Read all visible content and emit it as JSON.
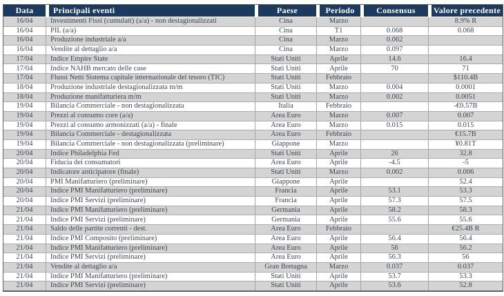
{
  "table": {
    "columns": [
      {
        "label": "Data"
      },
      {
        "label": "Principali eventi"
      },
      {
        "label": "Paese"
      },
      {
        "label": "Periodo"
      },
      {
        "label": "Consensus"
      },
      {
        "label": "Valore precedente"
      }
    ],
    "rows": [
      [
        "16/04",
        "Investimenti Fissi (cumulati) (a/a) - non destagionalizzati",
        "Cina",
        "Marzo",
        "",
        "8.9% R"
      ],
      [
        "16/04",
        "PIL (a/a)",
        "Cina",
        "T1",
        "0.068",
        "0.068"
      ],
      [
        "16/04",
        "Produzione industriale a/a",
        "Cina",
        "Marzo",
        "0.062",
        ""
      ],
      [
        "16/04",
        "Vendite al dettaglio a/a",
        "Cina",
        "Marzo",
        "0.097",
        ""
      ],
      [
        "17/04",
        "Indice Empire State",
        "Stati Uniti",
        "Aprile",
        "14.6",
        "16.4"
      ],
      [
        "17/04",
        "Indice NAHB mercato delle case",
        "Stati Uniti",
        "Aprile",
        "70",
        "71"
      ],
      [
        "17/04",
        "Flussi Netti Sistema capitale internazionale del tesoro (TIC)",
        "Stati Uniti",
        "Febbraio",
        "",
        "$110.4B"
      ],
      [
        "18/04",
        "Produzione industriale destagionalizzata m/m",
        "Stati Uniti",
        "Marzo",
        "0.004",
        "0.0001"
      ],
      [
        "18/04",
        "Produzione manifatturiera m/m",
        "Stati Uniti",
        "Marzo",
        "0.002",
        "0.0051"
      ],
      [
        "19/04",
        "Bilancia Commerciale - non destagionalizzata",
        "Italia",
        "Febbraio",
        "",
        "-€0.57B"
      ],
      [
        "19/04",
        "Prezzi al consumo core  (a/a)",
        "Area Euro",
        "Marzo",
        "0.007",
        "0.007"
      ],
      [
        "19/04",
        "Prezzi al consumo armonizzati (a/a) - finale",
        "Area Euro",
        "Marzo",
        "0.015",
        "0.015"
      ],
      [
        "19/04",
        "Bilancia Commerciale - destagionalizzata",
        "Area Euro",
        "Febbraio",
        "",
        "€15.7B"
      ],
      [
        "19/04",
        "Bilancia Commerciale -  non destagionalizzata (preliminare)",
        "Giappone",
        "Marzo",
        "",
        "¥0.81T"
      ],
      [
        "20/04",
        "Indice Philadelphia Fed",
        "Stati Uniti",
        "Aprile",
        "26",
        "32.8"
      ],
      [
        "20/04",
        "Fiducia dei consumatori",
        "Area Euro",
        "Aprile",
        "-4.5",
        "-5"
      ],
      [
        "20/04",
        "Indicatore anticipatore (finale)",
        "Stati Uniti",
        "Marzo",
        "0.002",
        "0.006"
      ],
      [
        "20/04",
        "PMI Manifatturiero (preliminare)",
        "Giappone",
        "Aprile",
        "",
        "52.4"
      ],
      [
        "20/04",
        "Indice PMI Manifatturiero (preliminare)",
        "Francia",
        "Aprile",
        "53.1",
        "53.3"
      ],
      [
        "20/04",
        "Indice PMI Servizi (preliminare)",
        "Francia",
        "Aprile",
        "57.3",
        "57.5"
      ],
      [
        "21/04",
        "Indice PMI Manifatturiero (preliminare)",
        "Germania",
        "Aprile",
        "58.2",
        "58.3"
      ],
      [
        "21/04",
        "Indice PMI Servizi (preliminare)",
        "Germania",
        "Aprile",
        "55.6",
        "55.6"
      ],
      [
        "21/04",
        "Saldo delle partite correnti - dest.",
        "Area Euro",
        "Febbraio",
        "",
        "€25.4B R"
      ],
      [
        "21/04",
        "Indice PMI Composito (preliminare)",
        "Area Euro",
        "Aprile",
        "56.4",
        "56.4"
      ],
      [
        "21/04",
        "Indice PMI Manifatturiero (preliminare)",
        "Area Euro",
        "Aprile",
        "56",
        "56.2"
      ],
      [
        "21/04",
        "Indice PMI Servizi (preliminare)",
        "Area Euro",
        "Aprile",
        "56.3",
        "56"
      ],
      [
        "21/04",
        "Vendite al dettaglio a/a",
        "Gran Bretagna",
        "Marzo",
        "0.037",
        "0.037"
      ],
      [
        "21/04",
        "Indice PMI Manifatturiero (preliminare)",
        "Stati Uniti",
        "Aprile",
        "53.7",
        "53.3"
      ],
      [
        "21/04",
        "Indice PMI Servizi (preliminare)",
        "Stati Uniti",
        "Aprile",
        "53.6",
        "52.8"
      ]
    ]
  },
  "colors": {
    "header_bg": "#1c3a5e",
    "header_text": "#ffffff",
    "row_alt_bg": "#d4d4d4",
    "row_bg": "#ffffff",
    "body_text": "#3d4450",
    "grid_line": "#a6a6a6",
    "outer_border": "#5f6062"
  }
}
